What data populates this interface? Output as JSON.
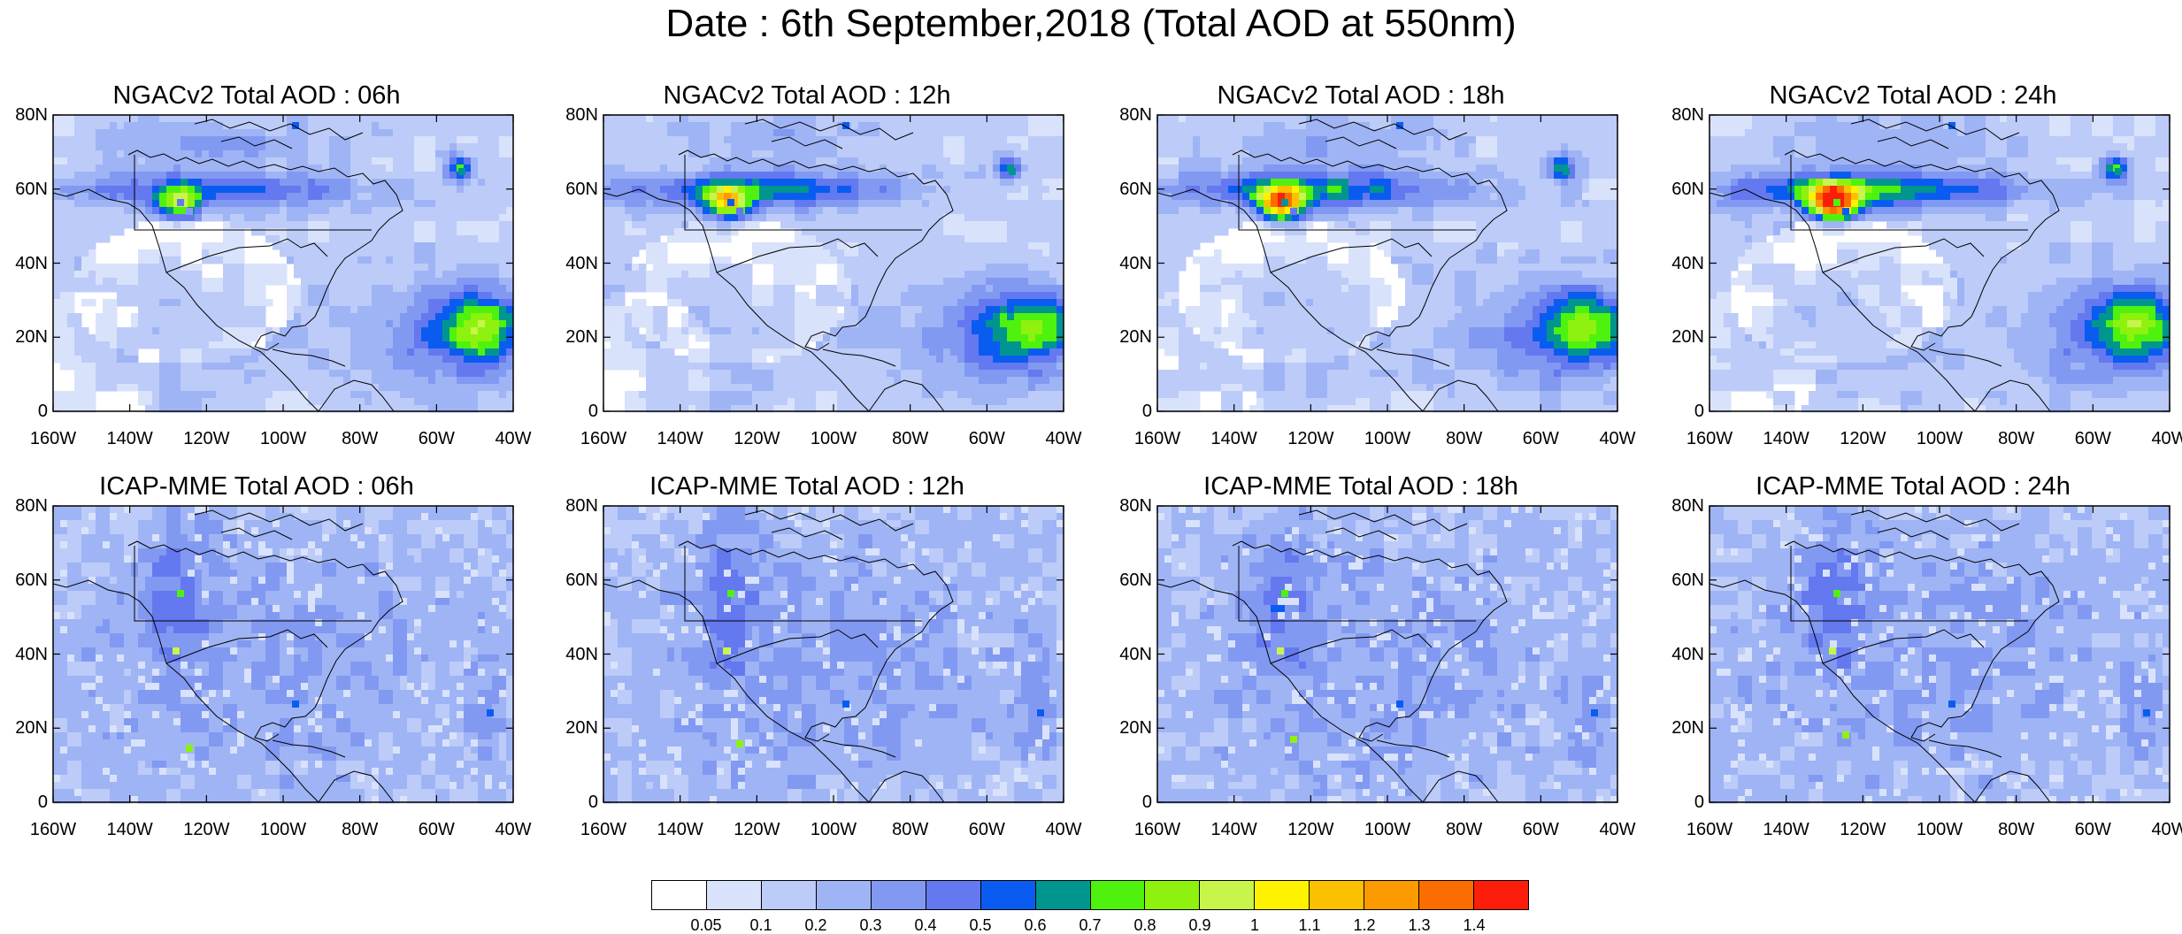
{
  "title": "Date : 6th September,2018 (Total AOD at 550nm)",
  "axes": {
    "lat_labels": [
      "80N",
      "60N",
      "40N",
      "20N",
      "0"
    ],
    "lon_labels": [
      "160W",
      "140W",
      "120W",
      "100W",
      "80W",
      "60W",
      "40W"
    ],
    "lat_range": [
      0,
      80
    ],
    "lon_range": [
      -160,
      -40
    ]
  },
  "panels": [
    {
      "title": "NGACv2 Total AOD : 06h",
      "model": "NGACv2",
      "hour": "06h"
    },
    {
      "title": "NGACv2 Total AOD : 12h",
      "model": "NGACv2",
      "hour": "12h"
    },
    {
      "title": "NGACv2 Total AOD : 18h",
      "model": "NGACv2",
      "hour": "18h"
    },
    {
      "title": "NGACv2 Total AOD : 24h",
      "model": "NGACv2",
      "hour": "24h"
    },
    {
      "title": "ICAP-MME Total AOD : 06h",
      "model": "ICAP-MME",
      "hour": "06h"
    },
    {
      "title": "ICAP-MME Total AOD : 12h",
      "model": "ICAP-MME",
      "hour": "12h"
    },
    {
      "title": "ICAP-MME Total AOD : 18h",
      "model": "ICAP-MME",
      "hour": "18h"
    },
    {
      "title": "ICAP-MME Total AOD : 24h",
      "model": "ICAP-MME",
      "hour": "24h"
    }
  ],
  "colorbar": {
    "labels": [
      "0.05",
      "0.1",
      "0.2",
      "0.3",
      "0.4",
      "0.5",
      "0.6",
      "0.7",
      "0.8",
      "0.9",
      "1",
      "1.1",
      "1.2",
      "1.3",
      "1.4"
    ],
    "colors": [
      "#ffffff",
      "#d9e2fb",
      "#bccbf8",
      "#9fb4f5",
      "#8299f2",
      "#6478ef",
      "#0a5cf0",
      "#00968f",
      "#4ef20e",
      "#8ef20e",
      "#c8f54a",
      "#fff200",
      "#fcc000",
      "#fc9a00",
      "#fc6d00",
      "#fc1e0a"
    ]
  }
}
